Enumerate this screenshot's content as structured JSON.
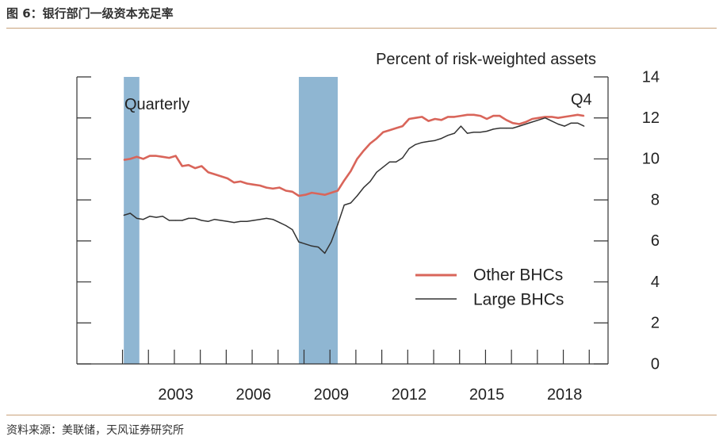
{
  "figure": {
    "title": "图 6：银行部门一级资本充足率",
    "source": "资料来源：美联储，天风证券研究所"
  },
  "chart_data": {
    "type": "line",
    "title": "Percent of risk-weighted assets",
    "frequency_label": "Quarterly",
    "end_label": "Q4",
    "xlabel": "",
    "ylabel": "Percent of risk-weighted assets",
    "xlim": [
      2000,
      2019.5
    ],
    "ylim": [
      0,
      14
    ],
    "x_ticks": [
      2003,
      2006,
      2009,
      2012,
      2015,
      2018
    ],
    "y_ticks": [
      0,
      2,
      4,
      6,
      8,
      10,
      12,
      14
    ],
    "recessions": [
      [
        2001.0,
        2001.6
      ],
      [
        2007.75,
        2009.25
      ]
    ],
    "legend": [
      "Other BHCs",
      "Large BHCs"
    ],
    "legend_position": "bottom-right",
    "series": [
      {
        "name": "Other BHCs",
        "color": "#d9655a",
        "x": [
          2001.0,
          2001.25,
          2001.5,
          2001.75,
          2002.0,
          2002.25,
          2002.5,
          2002.75,
          2003.0,
          2003.25,
          2003.5,
          2003.75,
          2004.0,
          2004.25,
          2004.5,
          2004.75,
          2005.0,
          2005.25,
          2005.5,
          2005.75,
          2006.0,
          2006.25,
          2006.5,
          2006.75,
          2007.0,
          2007.25,
          2007.5,
          2007.75,
          2008.0,
          2008.25,
          2008.5,
          2008.75,
          2009.0,
          2009.25,
          2009.5,
          2009.75,
          2010.0,
          2010.25,
          2010.5,
          2010.75,
          2011.0,
          2011.25,
          2011.5,
          2011.75,
          2012.0,
          2012.25,
          2012.5,
          2012.75,
          2013.0,
          2013.25,
          2013.5,
          2013.75,
          2014.0,
          2014.25,
          2014.5,
          2014.75,
          2015.0,
          2015.25,
          2015.5,
          2015.75,
          2016.0,
          2016.25,
          2016.5,
          2016.75,
          2017.0,
          2017.25,
          2017.5,
          2017.75,
          2018.0,
          2018.25,
          2018.5,
          2018.75
        ],
        "values": [
          9.95,
          10.0,
          10.1,
          10.0,
          10.15,
          10.15,
          10.1,
          10.05,
          10.15,
          9.65,
          9.7,
          9.55,
          9.65,
          9.35,
          9.25,
          9.15,
          9.05,
          8.85,
          8.9,
          8.8,
          8.75,
          8.7,
          8.6,
          8.55,
          8.6,
          8.45,
          8.4,
          8.2,
          8.25,
          8.35,
          8.3,
          8.25,
          8.35,
          8.45,
          8.95,
          9.4,
          10.0,
          10.4,
          10.75,
          11.0,
          11.3,
          11.4,
          11.5,
          11.6,
          11.95,
          12.0,
          12.05,
          11.85,
          11.95,
          11.9,
          12.05,
          12.05,
          12.1,
          12.15,
          12.15,
          12.1,
          11.95,
          12.1,
          12.1,
          11.9,
          11.75,
          11.7,
          11.8,
          11.95,
          12.0,
          12.05,
          12.05,
          12.0,
          12.05,
          12.1,
          12.15,
          12.1
        ]
      },
      {
        "name": "Large BHCs",
        "color": "#333333",
        "x": [
          2001.0,
          2001.25,
          2001.5,
          2001.75,
          2002.0,
          2002.25,
          2002.5,
          2002.75,
          2003.0,
          2003.25,
          2003.5,
          2003.75,
          2004.0,
          2004.25,
          2004.5,
          2004.75,
          2005.0,
          2005.25,
          2005.5,
          2005.75,
          2006.0,
          2006.25,
          2006.5,
          2006.75,
          2007.0,
          2007.25,
          2007.5,
          2007.75,
          2008.0,
          2008.25,
          2008.5,
          2008.75,
          2009.0,
          2009.25,
          2009.5,
          2009.75,
          2010.0,
          2010.25,
          2010.5,
          2010.75,
          2011.0,
          2011.25,
          2011.5,
          2011.75,
          2012.0,
          2012.25,
          2012.5,
          2012.75,
          2013.0,
          2013.25,
          2013.5,
          2013.75,
          2014.0,
          2014.25,
          2014.5,
          2014.75,
          2015.0,
          2015.25,
          2015.5,
          2015.75,
          2016.0,
          2016.25,
          2016.5,
          2016.75,
          2017.0,
          2017.25,
          2017.5,
          2017.75,
          2018.0,
          2018.25,
          2018.5,
          2018.75
        ],
        "values": [
          7.25,
          7.35,
          7.1,
          7.05,
          7.2,
          7.15,
          7.2,
          7.0,
          7.0,
          7.0,
          7.1,
          7.1,
          7.0,
          6.95,
          7.05,
          7.0,
          6.95,
          6.9,
          6.95,
          6.95,
          7.0,
          7.05,
          7.1,
          7.05,
          6.9,
          6.75,
          6.55,
          5.95,
          5.85,
          5.75,
          5.7,
          5.4,
          5.95,
          6.8,
          7.75,
          7.85,
          8.2,
          8.6,
          8.9,
          9.35,
          9.6,
          9.85,
          9.85,
          10.05,
          10.5,
          10.7,
          10.8,
          10.85,
          10.9,
          11.0,
          11.15,
          11.25,
          11.6,
          11.25,
          11.3,
          11.3,
          11.35,
          11.45,
          11.5,
          11.5,
          11.5,
          11.6,
          11.7,
          11.8,
          11.9,
          12.0,
          11.85,
          11.7,
          11.6,
          11.75,
          11.75,
          11.6
        ]
      }
    ]
  }
}
